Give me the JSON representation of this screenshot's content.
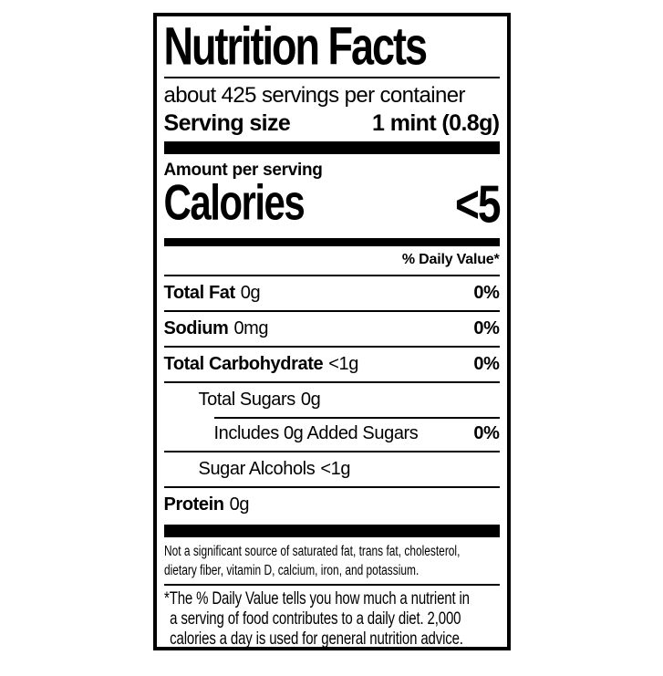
{
  "colors": {
    "ink": "#000000",
    "paper": "#ffffff"
  },
  "label": {
    "title": "Nutrition Facts",
    "servings_line": "about 425 servings per container",
    "serving_size": {
      "label": "Serving size",
      "value": "1 mint (0.8g)"
    },
    "amount_per_serving": "Amount per serving",
    "calories": {
      "label": "Calories",
      "value": "<5"
    },
    "daily_value_header": "% Daily Value*",
    "rows": [
      {
        "name": "Total Fat",
        "amount": "0g",
        "dv": "0%"
      },
      {
        "name": "Sodium",
        "amount": "0mg",
        "dv": "0%"
      },
      {
        "name": "Total Carbohydrate",
        "amount": "<1g",
        "dv": "0%"
      },
      {
        "name": "Total Sugars",
        "amount": "0g",
        "dv": ""
      },
      {
        "name": "Includes 0g Added Sugars",
        "amount": "",
        "dv": "0%"
      },
      {
        "name": "Sugar Alcohols",
        "amount": "<1g",
        "dv": ""
      },
      {
        "name": "Protein",
        "amount": "0g",
        "dv": ""
      }
    ],
    "not_significant_source": "Not a significant source of saturated fat, trans fat, cholesterol,\ndietary fiber, vitamin D, calcium, iron, and potassium.",
    "footnote": "*The % Daily Value tells you how much a nutrient in\na serving of food contributes to a daily diet. 2,000\ncalories a day is used for general nutrition advice."
  }
}
